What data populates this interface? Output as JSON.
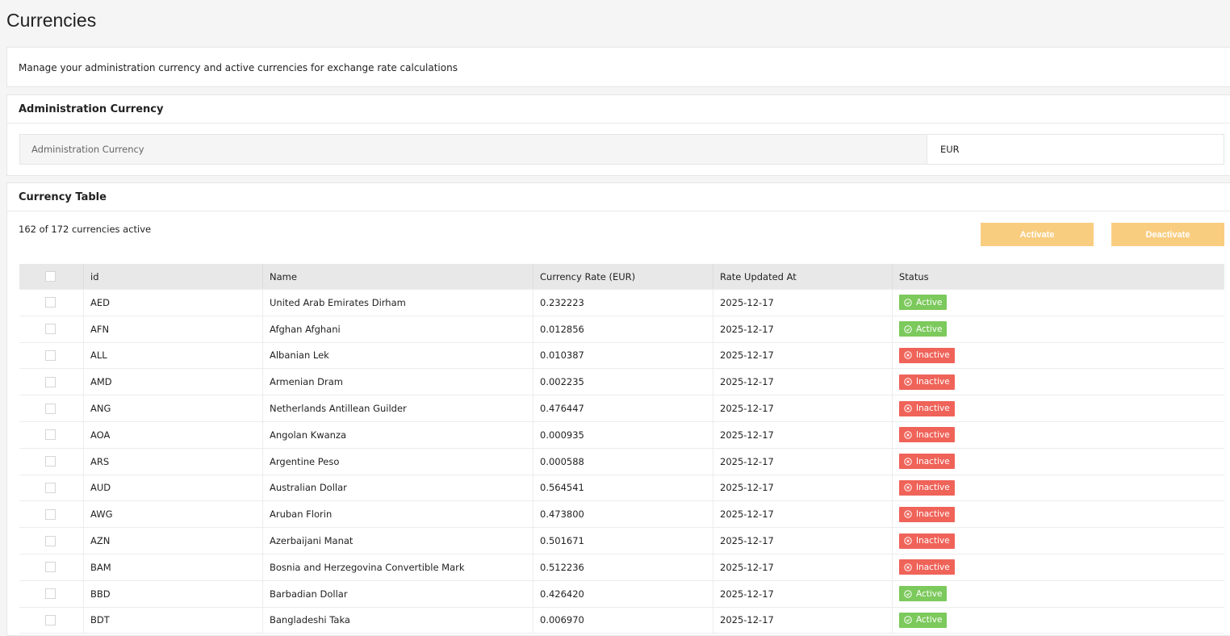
{
  "header": {
    "title": "Currencies"
  },
  "description": "Manage your administration currency and active currencies for exchange rate calculations",
  "admin_section": {
    "title": "Administration Currency",
    "field_label": "Administration Currency",
    "field_value": "EUR"
  },
  "table_section": {
    "title": "Currency Table",
    "summary": "162 of 172 currencies active",
    "buttons": [
      "Activate",
      "Deactivate"
    ]
  },
  "table": {
    "columns": [
      "id",
      "Name",
      "Currency Rate (EUR)",
      "Rate Updated At",
      "Status"
    ],
    "rows": [
      [
        "AED",
        "United Arab Emirates Dirham",
        "0.232223",
        "2025-12-17",
        "Active"
      ],
      [
        "AFN",
        "Afghan Afghani",
        "0.012856",
        "2025-12-17",
        "Active"
      ],
      [
        "ALL",
        "Albanian Lek",
        "0.010387",
        "2025-12-17",
        "Inactive"
      ],
      [
        "AMD",
        "Armenian Dram",
        "0.002235",
        "2025-12-17",
        "Inactive"
      ],
      [
        "ANG",
        "Netherlands Antillean Guilder",
        "0.476447",
        "2025-12-17",
        "Inactive"
      ],
      [
        "AOA",
        "Angolan Kwanza",
        "0.000935",
        "2025-12-17",
        "Inactive"
      ],
      [
        "ARS",
        "Argentine Peso",
        "0.000588",
        "2025-12-17",
        "Inactive"
      ],
      [
        "AUD",
        "Australian Dollar",
        "0.564541",
        "2025-12-17",
        "Inactive"
      ],
      [
        "AWG",
        "Aruban Florin",
        "0.473800",
        "2025-12-17",
        "Inactive"
      ],
      [
        "AZN",
        "Azerbaijani Manat",
        "0.501671",
        "2025-12-17",
        "Inactive"
      ],
      [
        "BAM",
        "Bosnia and Herzegovina Convertible Mark",
        "0.512236",
        "2025-12-17",
        "Inactive"
      ],
      [
        "BBD",
        "Barbadian Dollar",
        "0.426420",
        "2025-12-17",
        "Active"
      ],
      [
        "BDT",
        "Bangladeshi Taka",
        "0.006970",
        "2025-12-17",
        "Active"
      ]
    ]
  }
}
